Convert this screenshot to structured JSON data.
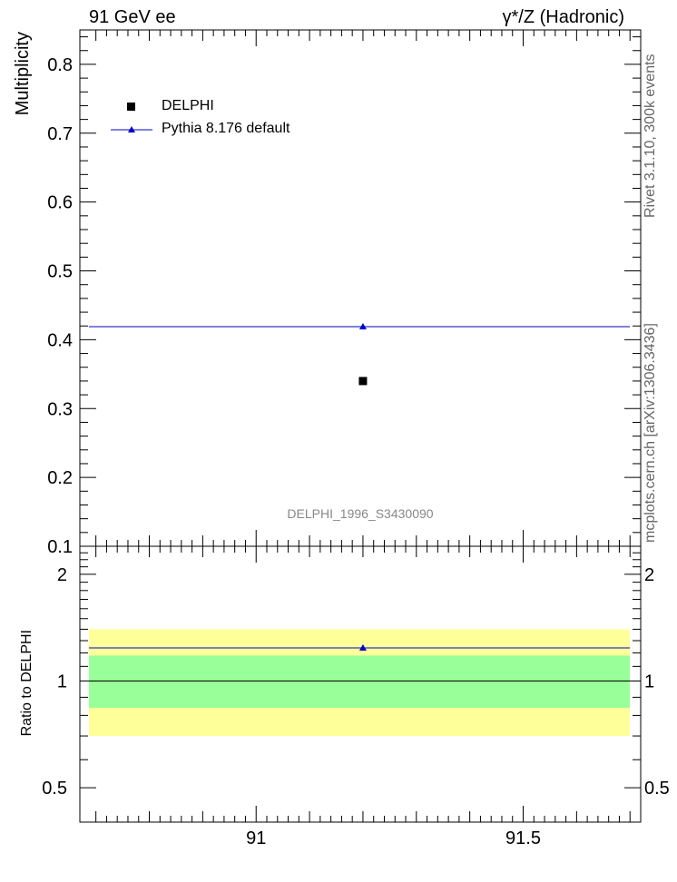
{
  "header": {
    "left": "91 GeV ee",
    "right": "γ*/Z (Hadronic)"
  },
  "side_labels": {
    "rivet": "Rivet 3.1.10,  300k events",
    "mcplots": "mcplots.cern.ch [arXiv:1306.3436]"
  },
  "watermark": "DELPHI_1996_S3430090",
  "legend": {
    "data_label": "DELPHI",
    "mc_label": "Pythia 8.176 default"
  },
  "colors": {
    "data": "#000000",
    "mc": "#0000cc",
    "band_inner": "#99ff99",
    "band_outer": "#ffff99"
  },
  "chart_data": [
    {
      "type": "scatter",
      "panel": "main",
      "ylabel": "Multiplicity",
      "xlim": [
        90.67,
        91.72
      ],
      "ylim": [
        0.1,
        0.85
      ],
      "yticks": [
        0.1,
        0.2,
        0.3,
        0.4,
        0.5,
        0.6,
        0.7,
        0.8
      ],
      "ytick_labels": [
        "0.1",
        "0.2",
        "0.3",
        "0.4",
        "0.5",
        "0.6",
        "0.7",
        "0.8"
      ],
      "series": [
        {
          "name": "DELPHI",
          "marker": "square",
          "x": [
            91.2
          ],
          "y": [
            0.34
          ]
        },
        {
          "name": "Pythia 8.176 default",
          "marker": "triangle",
          "x": [
            91.2
          ],
          "y": [
            0.419
          ],
          "xerr_range": [
            90.67,
            91.72
          ]
        }
      ]
    },
    {
      "type": "scatter",
      "panel": "ratio",
      "ylabel": "Ratio to DELPHI",
      "xlim": [
        90.67,
        91.72
      ],
      "ylim": [
        0.4,
        2.4
      ],
      "yscale": "log",
      "yticks": [
        0.5,
        1,
        2
      ],
      "ytick_labels": [
        "0.5",
        "1",
        "2"
      ],
      "xticks": [
        91,
        91.5
      ],
      "xtick_labels": [
        "91",
        "91.5"
      ],
      "bands": {
        "inner": [
          0.84,
          1.18
        ],
        "outer": [
          0.7,
          1.4
        ]
      },
      "series": [
        {
          "name": "Pythia 8.176 default",
          "marker": "triangle",
          "x": [
            91.2
          ],
          "y": [
            1.24
          ]
        }
      ]
    }
  ]
}
